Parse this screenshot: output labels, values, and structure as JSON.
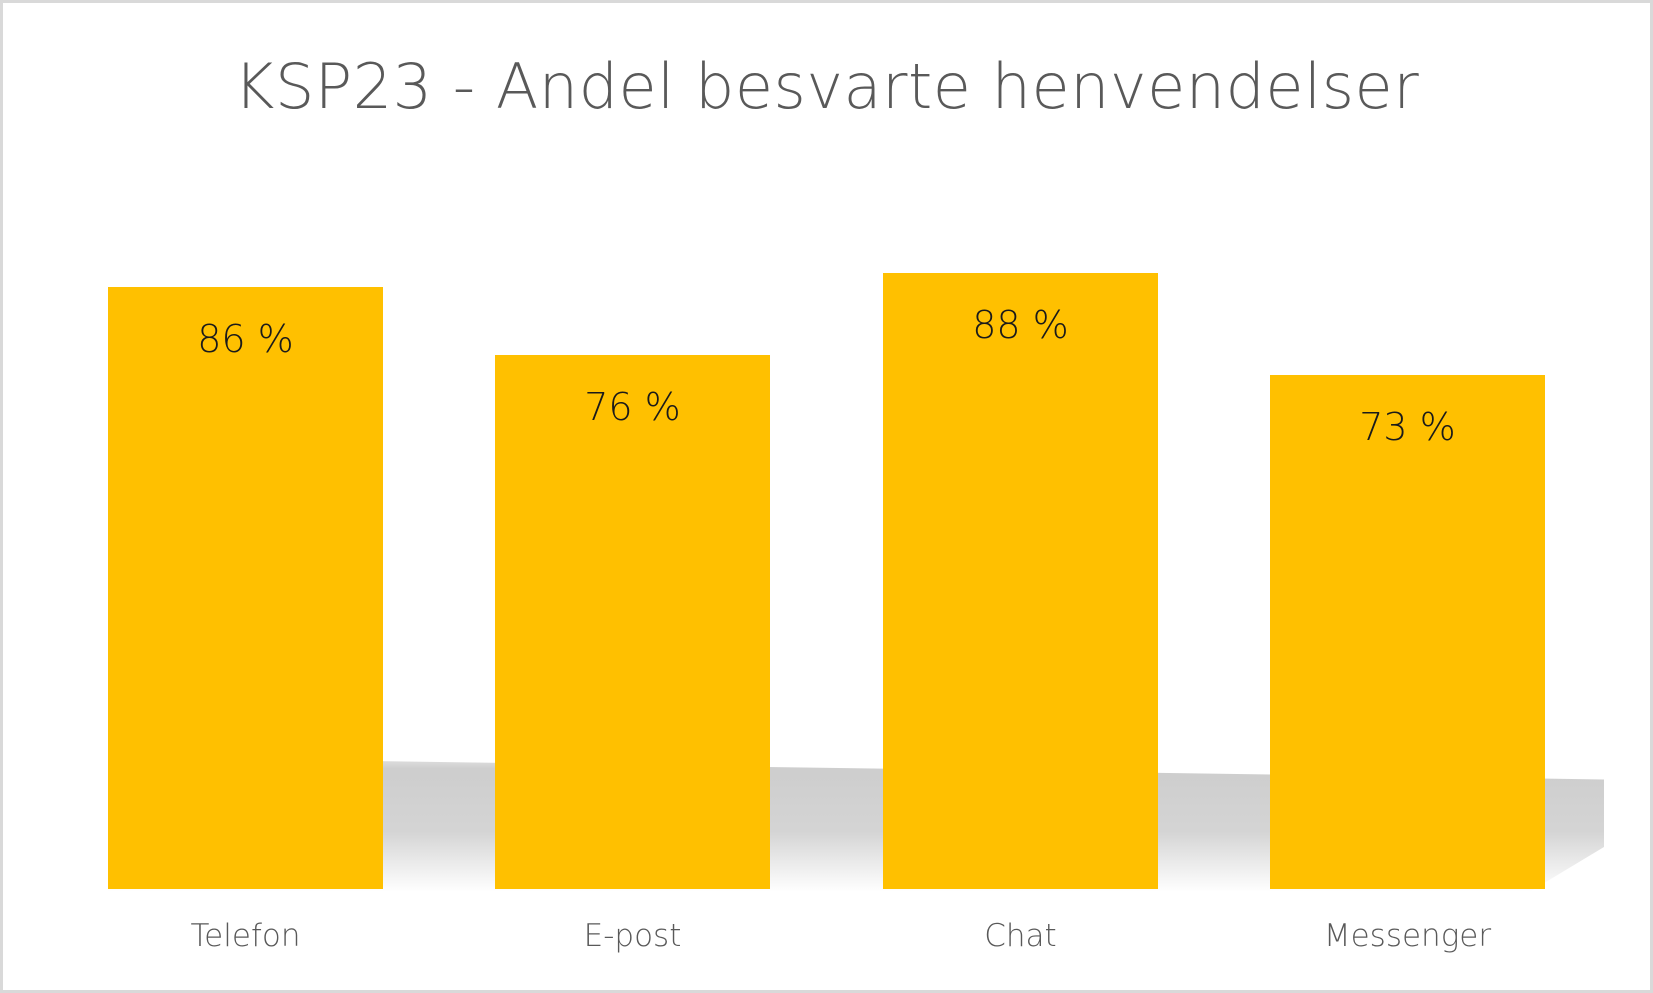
{
  "chart_data": {
    "type": "bar",
    "title": "KSP23 - Andel besvarte henvendelser",
    "categories": [
      "Telefon",
      "E-post",
      "Chat",
      "Messenger"
    ],
    "values": [
      86,
      76,
      88,
      73
    ],
    "value_labels": [
      "86 %",
      "76 %",
      "88 %",
      "73 %"
    ],
    "xlabel": "",
    "ylabel": "",
    "unit": "%",
    "grid": false,
    "legend": null,
    "bar_color": "#ffc000"
  },
  "colors": {
    "bar": "#ffc000",
    "title": "#595959",
    "axis_label": "#595959",
    "border": "#d9d9d9"
  }
}
